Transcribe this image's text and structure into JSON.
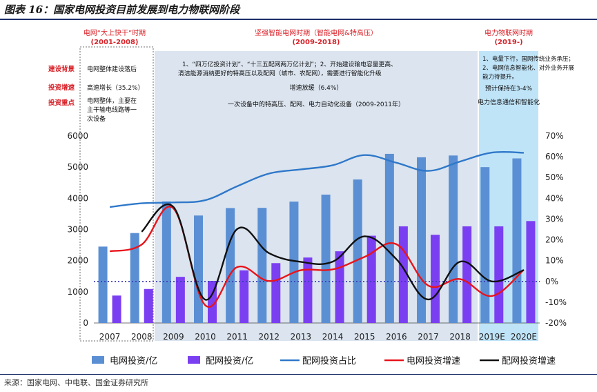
{
  "title": "图表 16：国家电网投资目前发展到电力物联网阶段",
  "source": "来源：国家电网、中电联、国金证券研究所",
  "phases": [
    {
      "name": "电网“大上快干”时期",
      "period": "(2001-2008)"
    },
    {
      "name": "坚强智能电网时期（智能电网&特高压）",
      "period": "(2009-2018)"
    },
    {
      "name": "电力物联网时期",
      "period": "(2019-)"
    }
  ],
  "row_labels": [
    "建设背景",
    "投资增速",
    "投资重点"
  ],
  "phase1_text": {
    "background": "电网整体建设落后",
    "growth": "高速增长（35.2%）",
    "focus": [
      "电网整体，主要在",
      "主干输电线路等一",
      "次设备"
    ]
  },
  "phase2_text": {
    "background": [
      "1、“四万亿投资计划”、“十三五配网两万亿计划”；2、开始建设输电容量更高、",
      "清洁能源消纳更好的特高压以及配网（城市、农配网），需要进行智能化升级"
    ],
    "growth": "增速放缓（6.4%）",
    "focus": "一次设备中的特高压、配网、电力自动化设备（2009-2011年）"
  },
  "phase3_text": {
    "background": [
      "1、电量下行，国网传统业务承压；",
      "2、电网信息智能化、对外业务开展",
      "能力待提升。"
    ],
    "growth": "预计保持在3-4%",
    "focus": "电力信息通信和智能化"
  },
  "chart_data": {
    "type": "bar",
    "categories": [
      "2007",
      "2008",
      "2009",
      "2010",
      "2011",
      "2012",
      "2013",
      "2014",
      "2015",
      "2016",
      "2017",
      "2018",
      "2019E",
      "2020E"
    ],
    "y_left": {
      "min": 0,
      "max": 6000,
      "ticks": [
        "0",
        "1000",
        "2000",
        "3000",
        "4000",
        "5000",
        "6000"
      ]
    },
    "y_right": {
      "min": -20,
      "max": 70,
      "ticks": [
        "-20%",
        "-10%",
        "0%",
        "10%",
        "20%",
        "30%",
        "40%",
        "50%",
        "60%",
        "70%"
      ]
    },
    "series": [
      {
        "name": "电网投资/亿",
        "type": "bar",
        "axis": "left",
        "color": "#5b8fd4",
        "values": [
          2451,
          2885,
          3898,
          3448,
          3687,
          3693,
          3894,
          4118,
          4603,
          5426,
          5315,
          5373,
          5000,
          5280
        ]
      },
      {
        "name": "配网投资/亿",
        "type": "bar",
        "axis": "left",
        "color": "#7b3ff2",
        "values": [
          880,
          1090,
          1480,
          1350,
          1690,
          1920,
          2100,
          2300,
          2800,
          3100,
          2830,
          3100,
          3100,
          3270
        ]
      },
      {
        "name": "配网投资占比",
        "type": "line",
        "axis": "right",
        "color": "#2f78c9",
        "values": [
          35.8,
          37.6,
          38.0,
          39.1,
          45.8,
          51.9,
          53.9,
          55.9,
          60.8,
          57.1,
          53.2,
          57.7,
          62.0,
          61.9
        ]
      },
      {
        "name": "电网投资增速",
        "type": "line",
        "axis": "right",
        "color": "#e8141b",
        "values": [
          14.5,
          17.7,
          35.1,
          -11.5,
          6.9,
          0.2,
          5.4,
          5.8,
          11.8,
          17.9,
          -2.0,
          1.1,
          -7.0,
          5.6
        ]
      },
      {
        "name": "配网投资增速",
        "type": "line",
        "axis": "right",
        "color": "#111111",
        "values": [
          null,
          23.9,
          35.8,
          -8.8,
          25.2,
          13.6,
          9.4,
          9.5,
          21.7,
          10.7,
          -8.7,
          9.5,
          0.0,
          5.5
        ]
      }
    ],
    "reference_line": {
      "value": 0,
      "axis": "right",
      "style": "dotted"
    },
    "legend_placement": "bottom",
    "grid": false
  },
  "colors": {
    "phase_bg_1": "#ffffff",
    "phase_bg_2": "#dbe4ef",
    "phase_bg_3": "#bfe4f8",
    "label_red": "#d9232a",
    "text_dark": "#111111"
  }
}
